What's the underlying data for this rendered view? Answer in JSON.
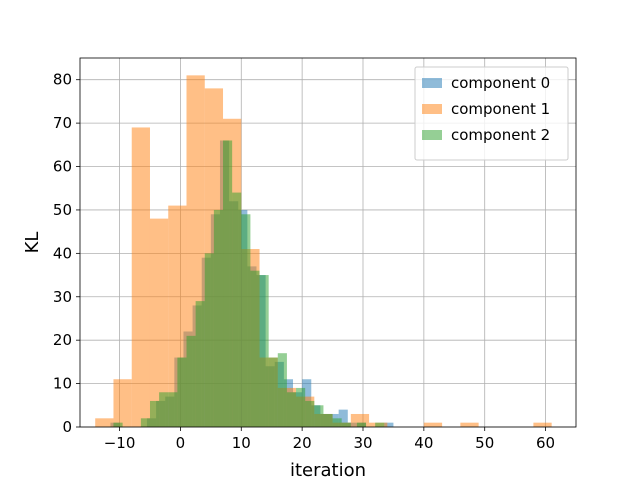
{
  "chart_data": {
    "type": "histogram",
    "title": "",
    "xlabel": "iteration",
    "ylabel": "KL",
    "xlim": [
      -16.5,
      65
    ],
    "ylim": [
      0,
      85
    ],
    "xticks": [
      -10,
      0,
      10,
      20,
      30,
      40,
      50,
      60
    ],
    "yticks": [
      0,
      10,
      20,
      30,
      40,
      50,
      60,
      70,
      80
    ],
    "grid": true,
    "legend_position": "top-right",
    "series": [
      {
        "name": "component 0",
        "color": "#1f77b4",
        "alpha": 0.5,
        "bins": [
          [
            -11.5,
            -10.0,
            1
          ],
          [
            -5.5,
            -4.0,
            2
          ],
          [
            -4.0,
            -2.5,
            6
          ],
          [
            -2.5,
            -1.0,
            7
          ],
          [
            -1.0,
            0.5,
            16
          ],
          [
            0.5,
            2.0,
            22
          ],
          [
            2.0,
            3.5,
            28
          ],
          [
            3.5,
            5.0,
            39
          ],
          [
            5.0,
            6.5,
            49
          ],
          [
            6.5,
            8.0,
            66
          ],
          [
            8.0,
            9.5,
            52
          ],
          [
            9.5,
            11.0,
            50
          ],
          [
            11.0,
            12.5,
            37
          ],
          [
            12.5,
            14.0,
            35
          ],
          [
            14.0,
            15.5,
            14
          ],
          [
            15.5,
            17.0,
            15
          ],
          [
            17.0,
            18.5,
            11
          ],
          [
            18.5,
            20.0,
            8
          ],
          [
            20.0,
            21.5,
            11
          ],
          [
            21.5,
            23.0,
            5
          ],
          [
            23.0,
            24.5,
            3
          ],
          [
            24.5,
            26.0,
            3
          ],
          [
            26.0,
            27.5,
            4
          ],
          [
            27.5,
            29.0,
            1
          ],
          [
            29.0,
            30.5,
            1
          ],
          [
            33.5,
            35.0,
            1
          ]
        ]
      },
      {
        "name": "component 1",
        "color": "#ff7f0e",
        "alpha": 0.5,
        "bins": [
          [
            -14.0,
            -11.0,
            2
          ],
          [
            -11.0,
            -8.0,
            11
          ],
          [
            -8.0,
            -5.0,
            69
          ],
          [
            -5.0,
            -2.0,
            48
          ],
          [
            -2.0,
            1.0,
            51
          ],
          [
            1.0,
            4.0,
            81
          ],
          [
            4.0,
            7.0,
            78
          ],
          [
            7.0,
            10.0,
            71
          ],
          [
            10.0,
            13.0,
            41
          ],
          [
            13.0,
            16.0,
            16
          ],
          [
            16.0,
            19.0,
            9
          ],
          [
            19.0,
            22.0,
            7
          ],
          [
            22.0,
            25.0,
            3
          ],
          [
            25.0,
            28.0,
            1
          ],
          [
            28.0,
            31.0,
            3
          ],
          [
            31.0,
            34.0,
            1
          ],
          [
            40.0,
            43.0,
            1
          ],
          [
            46.0,
            49.0,
            1
          ],
          [
            58.0,
            61.0,
            1
          ]
        ]
      },
      {
        "name": "component 2",
        "color": "#2ca02c",
        "alpha": 0.5,
        "bins": [
          [
            -11.0,
            -9.5,
            1
          ],
          [
            -6.5,
            -5.0,
            2
          ],
          [
            -5.0,
            -3.5,
            6
          ],
          [
            -3.5,
            -2.0,
            8
          ],
          [
            -2.0,
            -0.5,
            8
          ],
          [
            -0.5,
            1.0,
            16
          ],
          [
            1.0,
            2.5,
            21
          ],
          [
            2.5,
            4.0,
            29
          ],
          [
            4.0,
            5.5,
            40
          ],
          [
            5.5,
            7.0,
            50
          ],
          [
            7.0,
            8.5,
            66
          ],
          [
            8.5,
            10.0,
            54
          ],
          [
            10.0,
            11.5,
            49
          ],
          [
            11.5,
            13.0,
            36
          ],
          [
            13.0,
            14.5,
            35
          ],
          [
            14.5,
            16.0,
            16
          ],
          [
            16.0,
            17.5,
            17
          ],
          [
            17.5,
            19.0,
            8
          ],
          [
            19.0,
            20.5,
            9
          ],
          [
            20.5,
            22.0,
            6
          ],
          [
            22.0,
            23.5,
            5
          ],
          [
            23.5,
            25.0,
            3
          ],
          [
            25.0,
            26.5,
            2
          ],
          [
            26.5,
            28.0,
            1
          ],
          [
            29.0,
            30.5,
            1
          ],
          [
            32.0,
            33.5,
            1
          ]
        ]
      }
    ]
  }
}
